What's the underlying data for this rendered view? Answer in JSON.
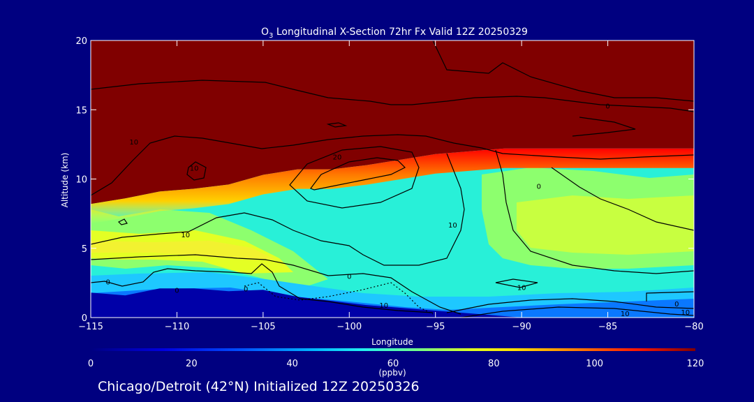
{
  "chart_data": {
    "type": "heatmap",
    "title": {
      "species_symbol": "O",
      "species_subscript": "3",
      "rest": " Longitudinal X-Section 72hr  Fx Valid 12Z 20250329"
    },
    "xlabel": "Longitude",
    "ylabel": "Altitude (km)",
    "xlim": [
      -115,
      -80
    ],
    "ylim": [
      0,
      20
    ],
    "x_ticks": [
      -115,
      -110,
      -105,
      -100,
      -95,
      -90,
      -85,
      -80
    ],
    "x_tick_labels": [
      "−115",
      "−110",
      "−105",
      "−100",
      "−95",
      "−90",
      "−85",
      "−80"
    ],
    "y_ticks": [
      0,
      5,
      10,
      15,
      20
    ],
    "y_tick_labels": [
      "0",
      "5",
      "10",
      "15",
      "20"
    ],
    "colorbar": {
      "min": 0,
      "max": 120,
      "ticks": [
        0,
        20,
        40,
        60,
        80,
        100,
        120
      ],
      "tick_labels": [
        "0",
        "20",
        "40",
        "60",
        "80",
        "100",
        "120"
      ],
      "unit_label": "(ppbv)"
    },
    "tropopause_height_km": [
      [
        -115,
        8.2
      ],
      [
        -113,
        8.6
      ],
      [
        -111,
        9.1
      ],
      [
        -109,
        9.3
      ],
      [
        -107,
        9.6
      ],
      [
        -105,
        10.3
      ],
      [
        -103,
        10.7
      ],
      [
        -101,
        10.7
      ],
      [
        -99,
        11.0
      ],
      [
        -97,
        11.4
      ],
      [
        -95,
        11.8
      ],
      [
        -93,
        12.0
      ],
      [
        -91,
        12.2
      ],
      [
        -89,
        12.2
      ],
      [
        -85,
        12.2
      ],
      [
        -80,
        12.2
      ]
    ],
    "surface_height_km": [
      [
        -115,
        1.8
      ],
      [
        -113,
        1.6
      ],
      [
        -111,
        2.1
      ],
      [
        -109,
        2.1
      ],
      [
        -107,
        1.9
      ],
      [
        -105,
        2.0
      ],
      [
        -103,
        1.5
      ],
      [
        -101,
        1.2
      ],
      [
        -99,
        0.9
      ],
      [
        -97,
        0.7
      ],
      [
        -95,
        0.5
      ],
      [
        -93,
        0.3
      ],
      [
        -90,
        0.0
      ],
      [
        -80,
        0.0
      ]
    ],
    "contour_labels": [
      {
        "text": "20",
        "lon": -100.7,
        "alt": 11.6
      },
      {
        "text": "10",
        "lon": -112.5,
        "alt": 12.7
      },
      {
        "text": "10",
        "lon": -109.0,
        "alt": 10.8
      },
      {
        "text": "0",
        "lon": -89.0,
        "alt": 9.5
      },
      {
        "text": "0",
        "lon": -85.0,
        "alt": 15.3
      },
      {
        "text": "10",
        "lon": -109.5,
        "alt": 6.0
      },
      {
        "text": "10",
        "lon": -94.0,
        "alt": 6.7
      },
      {
        "text": "0",
        "lon": -100.0,
        "alt": 3.0
      },
      {
        "text": "10",
        "lon": -90.0,
        "alt": 2.2
      },
      {
        "text": "10",
        "lon": -98.0,
        "alt": 0.9
      },
      {
        "text": "0",
        "lon": -114.0,
        "alt": 2.6
      },
      {
        "text": "0",
        "lon": -110.0,
        "alt": 2.0
      },
      {
        "text": "0",
        "lon": -106.0,
        "alt": 2.1
      },
      {
        "text": "10",
        "lon": -84.0,
        "alt": 0.3
      },
      {
        "text": "0",
        "lon": -81.0,
        "alt": 1.0
      },
      {
        "text": "10",
        "lon": -80.5,
        "alt": 0.4
      }
    ]
  },
  "footer": {
    "caption": "Chicago/Detroit (42°N) Initialized 12Z 20250326"
  },
  "colors": {
    "background": "#000080",
    "stratosphere": "#800000",
    "text": "#ffffff",
    "contour": "#000000"
  }
}
